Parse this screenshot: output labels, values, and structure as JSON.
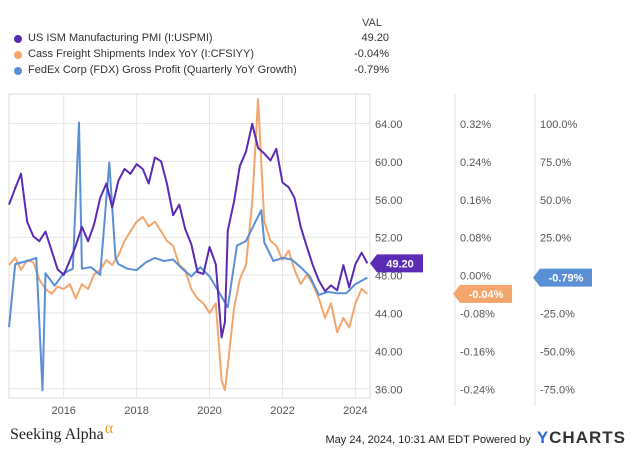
{
  "legend": {
    "header": "VAL",
    "items": [
      {
        "name": "US ISM Manufacturing PMI (I:USPMI)",
        "value": "49.20",
        "color": "#5b2bb5"
      },
      {
        "name": "Cass Freight Shipments Index YoY (I:CFSIYY)",
        "value": "-0.04%",
        "color": "#f3a56c"
      },
      {
        "name": "FedEx Corp (FDX) Gross Profit (Quarterly YoY Growth)",
        "value": "-0.79%",
        "color": "#5a8fd6"
      }
    ]
  },
  "footer": {
    "brand": "Seeking Alpha",
    "brand_mark": "α",
    "timestamp": "May 24, 2024, 10:31 AM EDT Powered by",
    "logo_y": "Y",
    "logo_rest": "CHARTS"
  },
  "chart_data": {
    "type": "line",
    "x_ticks": [
      "2016",
      "2018",
      "2020",
      "2022",
      "2024"
    ],
    "xlim": [
      2014.5,
      2024.4
    ],
    "axes": [
      {
        "id": "pmi",
        "ticks": [
          "64.00",
          "60.00",
          "56.00",
          "52.00",
          "48.00",
          "44.00",
          "40.00",
          "36.00"
        ],
        "range": [
          35.2,
          66.8
        ]
      },
      {
        "id": "cass",
        "ticks": [
          "0.32%",
          "0.24%",
          "0.16%",
          "0.08%",
          "0.00%",
          "-0.08%",
          "-0.16%",
          "-0.24%"
        ],
        "range": [
          -0.2566,
          0.3754
        ]
      },
      {
        "id": "fdx",
        "ticks": [
          "100.0%",
          "75.0%",
          "50.0%",
          "25.0%",
          "0.0%",
          "-25.0%",
          "-50.0%",
          "-75.0%"
        ],
        "range": [
          -0.79,
          1.185
        ]
      }
    ],
    "series": [
      {
        "name": "US ISM Manufacturing PMI (I:USPMI)",
        "axis": "pmi",
        "color": "#5b2bb5",
        "last_label": "49.20",
        "x": [
          2014.5,
          2014.67,
          2014.83,
          2015.0,
          2015.17,
          2015.33,
          2015.5,
          2015.67,
          2015.83,
          2016.0,
          2016.17,
          2016.33,
          2016.5,
          2016.67,
          2016.83,
          2017.0,
          2017.17,
          2017.33,
          2017.5,
          2017.67,
          2017.83,
          2018.0,
          2018.17,
          2018.33,
          2018.5,
          2018.67,
          2018.83,
          2019.0,
          2019.17,
          2019.33,
          2019.5,
          2019.67,
          2019.83,
          2020.0,
          2020.17,
          2020.33,
          2020.42,
          2020.5,
          2020.67,
          2020.83,
          2021.0,
          2021.17,
          2021.33,
          2021.5,
          2021.67,
          2021.83,
          2022.0,
          2022.17,
          2022.33,
          2022.5,
          2022.67,
          2022.83,
          2023.0,
          2023.17,
          2023.33,
          2023.5,
          2023.67,
          2023.83,
          2024.0,
          2024.17,
          2024.33
        ],
        "y": [
          55.3,
          57.0,
          58.5,
          53.5,
          52.0,
          51.5,
          52.5,
          50.5,
          48.6,
          48.0,
          49.5,
          51.0,
          53.0,
          51.5,
          53.2,
          56.0,
          57.5,
          55.0,
          57.8,
          59.0,
          58.5,
          59.5,
          59.0,
          57.5,
          60.2,
          59.8,
          57.5,
          54.2,
          55.3,
          52.8,
          51.2,
          48.3,
          48.1,
          50.9,
          49.1,
          41.5,
          43.1,
          52.6,
          55.6,
          59.3,
          60.8,
          63.7,
          61.2,
          60.6,
          59.9,
          61.1,
          57.6,
          57.1,
          56.0,
          53.0,
          50.9,
          49.0,
          47.4,
          46.3,
          46.9,
          46.4,
          49.0,
          46.7,
          49.1,
          50.3,
          49.2
        ]
      },
      {
        "name": "Cass Freight Shipments Index YoY (I:CFSIYY)",
        "axis": "cass",
        "color": "#f3a56c",
        "last_label": "-0.04%",
        "x": [
          2014.5,
          2014.67,
          2014.83,
          2015.0,
          2015.17,
          2015.33,
          2015.5,
          2015.67,
          2015.83,
          2016.0,
          2016.17,
          2016.33,
          2016.5,
          2016.67,
          2016.83,
          2017.0,
          2017.17,
          2017.33,
          2017.5,
          2017.67,
          2017.83,
          2018.0,
          2018.17,
          2018.33,
          2018.5,
          2018.67,
          2018.83,
          2019.0,
          2019.17,
          2019.33,
          2019.5,
          2019.67,
          2019.83,
          2020.0,
          2020.17,
          2020.33,
          2020.42,
          2020.5,
          2020.67,
          2020.83,
          2021.0,
          2021.17,
          2021.33,
          2021.5,
          2021.67,
          2021.83,
          2022.0,
          2022.17,
          2022.33,
          2022.5,
          2022.67,
          2022.83,
          2023.0,
          2023.17,
          2023.33,
          2023.5,
          2023.67,
          2023.83,
          2024.0,
          2024.17,
          2024.33
        ],
        "y": [
          0.02,
          0.035,
          0.01,
          0.03,
          0.025,
          -0.01,
          -0.03,
          -0.04,
          -0.025,
          -0.03,
          -0.02,
          -0.05,
          -0.02,
          -0.03,
          0.0,
          0.01,
          0.03,
          0.02,
          0.04,
          0.07,
          0.09,
          0.11,
          0.12,
          0.1,
          0.11,
          0.09,
          0.07,
          0.06,
          0.02,
          0.01,
          -0.03,
          -0.05,
          -0.06,
          -0.08,
          -0.06,
          -0.22,
          -0.24,
          -0.19,
          -0.07,
          -0.01,
          0.02,
          0.15,
          0.365,
          0.11,
          0.07,
          0.06,
          0.03,
          0.05,
          0.01,
          -0.02,
          0.0,
          -0.02,
          -0.05,
          -0.09,
          -0.06,
          -0.12,
          -0.09,
          -0.11,
          -0.06,
          -0.03,
          -0.04
        ]
      },
      {
        "name": "FedEx Corp (FDX) Gross Profit (Quarterly YoY Growth)",
        "axis": "fdx",
        "color": "#5a8fd6",
        "last_label": "-0.79%",
        "x": [
          2014.5,
          2014.67,
          2015.0,
          2015.25,
          2015.42,
          2015.5,
          2015.75,
          2016.0,
          2016.25,
          2016.42,
          2016.5,
          2016.75,
          2017.0,
          2017.25,
          2017.42,
          2017.5,
          2017.75,
          2018.0,
          2018.25,
          2018.5,
          2018.75,
          2019.0,
          2019.25,
          2019.5,
          2019.75,
          2020.0,
          2020.25,
          2020.5,
          2020.75,
          2021.0,
          2021.25,
          2021.42,
          2021.5,
          2021.75,
          2022.0,
          2022.25,
          2022.5,
          2022.75,
          2023.0,
          2023.25,
          2023.5,
          2023.75,
          2024.0,
          2024.33
        ],
        "y": [
          -0.33,
          0.08,
          0.1,
          0.12,
          -0.74,
          0.02,
          -0.06,
          0.02,
          0.05,
          1.0,
          0.05,
          0.06,
          0.01,
          0.74,
          0.12,
          0.08,
          0.05,
          0.04,
          0.09,
          0.12,
          0.1,
          0.11,
          0.05,
          0.0,
          0.06,
          0.0,
          -0.1,
          -0.2,
          0.2,
          0.23,
          0.35,
          0.43,
          0.22,
          0.1,
          0.12,
          0.11,
          0.06,
          0.0,
          -0.12,
          -0.1,
          -0.11,
          -0.11,
          -0.05,
          -0.0079
        ]
      }
    ]
  }
}
